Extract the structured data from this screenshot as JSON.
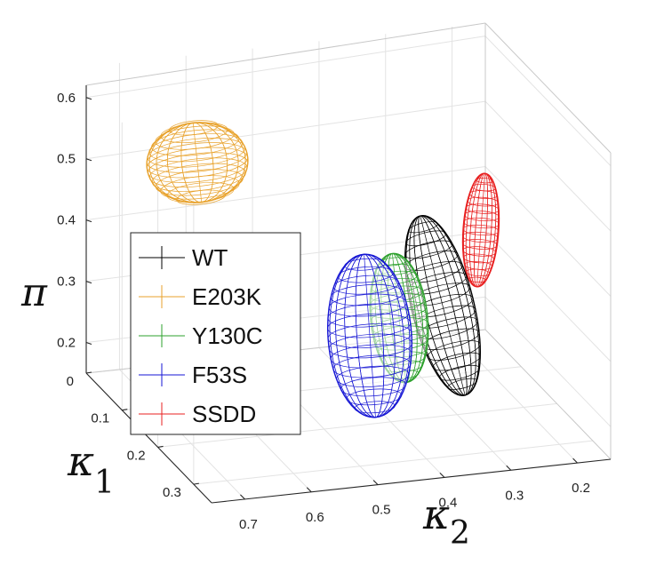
{
  "chart_data": {
    "type": "scatter",
    "subtype": "3d-ellipsoid-wireframe",
    "title": "",
    "axes": {
      "x": {
        "label": "κ",
        "subscript": "2",
        "ticks": [
          "0.2",
          "0.3",
          "0.4",
          "0.5",
          "0.6",
          "0.7"
        ],
        "range": [
          0.15,
          0.75
        ],
        "reversed": true
      },
      "y": {
        "label": "κ",
        "subscript": "1",
        "ticks": [
          "0",
          "0.1",
          "0.2",
          "0.3"
        ],
        "range": [
          0,
          0.35
        ]
      },
      "z": {
        "label": "π",
        "ticks": [
          "0.2",
          "0.3",
          "0.4",
          "0.5",
          "0.6"
        ],
        "range": [
          0.15,
          0.62
        ]
      }
    },
    "grid": true,
    "legend_position": "left",
    "series": [
      {
        "name": "WT",
        "color": "#000000",
        "center": {
          "kappa2": 0.36,
          "kappa1": 0.13,
          "pi": 0.3
        }
      },
      {
        "name": "E203K",
        "color": "#e8a22c",
        "center": {
          "kappa2": 0.62,
          "kappa1": 0.03,
          "pi": 0.53
        }
      },
      {
        "name": "Y130C",
        "color": "#2ca02c",
        "center": {
          "kappa2": 0.44,
          "kappa1": 0.16,
          "pi": 0.26
        }
      },
      {
        "name": "F53S",
        "color": "#1616d4",
        "center": {
          "kappa2": 0.52,
          "kappa1": 0.17,
          "pi": 0.22
        }
      },
      {
        "name": "SSDD",
        "color": "#e82020",
        "center": {
          "kappa2": 0.27,
          "kappa1": 0.1,
          "pi": 0.39
        }
      }
    ]
  }
}
